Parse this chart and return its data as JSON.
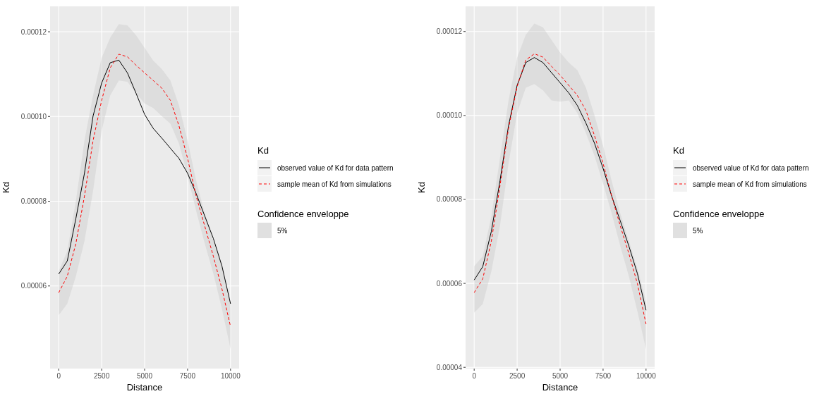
{
  "chart_data": [
    {
      "type": "line",
      "xlabel": "Distance",
      "ylabel": "Kd",
      "legend_title": "Kd",
      "legend": "right",
      "grid": true,
      "xlim": [
        -500,
        10500
      ],
      "xticks": [
        0,
        2500,
        5000,
        7500,
        10000
      ],
      "ylim": [
        4.05e-05,
        0.000126
      ],
      "yticks": [
        {
          "value": 6e-05,
          "label": "0.00006"
        },
        {
          "value": 8e-05,
          "label": "0.00008"
        },
        {
          "value": 0.0001,
          "label": "0.00010"
        },
        {
          "value": 0.00012,
          "label": "0.00012"
        }
      ],
      "x": [
        0,
        500,
        1000,
        1500,
        2000,
        2500,
        3000,
        3500,
        4000,
        4500,
        5000,
        5500,
        6000,
        6500,
        7000,
        7500,
        8000,
        8500,
        9000,
        9500,
        10000
      ],
      "annotations": [
        "Confidence enveloppe",
        "5%"
      ],
      "series": [
        {
          "name": "observed value of Kd for data pattern",
          "color": "#000000",
          "line_style": "solid",
          "values": [
            6.28e-05,
            6.59e-05,
            7.59e-05,
            8.66e-05,
            0.0001001,
            0.0001079,
            0.0001127,
            0.0001133,
            0.0001103,
            0.0001055,
            0.0001005,
            9.72e-05,
            9.49e-05,
            9.25e-05,
            9.01e-05,
            8.66e-05,
            8.18e-05,
            7.65e-05,
            7.12e-05,
            6.47e-05,
            5.58e-05
          ]
        },
        {
          "name": "sample mean of Kd from simulations",
          "color": "#ff0000",
          "line_style": "dashed",
          "values": [
            5.84e-05,
            6.23e-05,
            7e-05,
            8.12e-05,
            9.43e-05,
            0.0001038,
            0.0001115,
            0.0001147,
            0.0001141,
            0.0001121,
            0.0001103,
            0.0001085,
            0.0001067,
            0.0001038,
            9.78e-05,
            9.01e-05,
            8.12e-05,
            7.41e-05,
            6.7e-05,
            5.93e-05,
            5.04e-05
          ],
          "lower": [
            5.31e-05,
            5.58e-05,
            6.23e-05,
            7.06e-05,
            8.24e-05,
            9.67e-05,
            0.000105,
            0.0001085,
            0.0001082,
            0.0001055,
            0.0001031,
            0.000102,
            0.0001001,
            9.83e-05,
            9.36e-05,
            8.6e-05,
            7.77e-05,
            7e-05,
            6.29e-05,
            5.46e-05,
            4.51e-05
          ],
          "upper": [
            6.35e-05,
            6.82e-05,
            8e-05,
            9.43e-05,
            0.000105,
            0.0001138,
            0.0001186,
            0.0001218,
            0.0001215,
            0.0001192,
            0.0001162,
            0.0001132,
            0.0001112,
            0.0001085,
            0.0001026,
            9.43e-05,
            8.48e-05,
            7.71e-05,
            7.06e-05,
            6.47e-05,
            5.58e-05
          ]
        }
      ]
    },
    {
      "type": "line",
      "xlabel": "Distance",
      "ylabel": "Kd",
      "legend_title": "Kd",
      "legend": "right",
      "grid": true,
      "xlim": [
        -500,
        10500
      ],
      "xticks": [
        0,
        2500,
        5000,
        7500,
        10000
      ],
      "ylim": [
        3.97e-05,
        0.000126
      ],
      "yticks": [
        {
          "value": 4e-05,
          "label": "0.00004"
        },
        {
          "value": 6e-05,
          "label": "0.00006"
        },
        {
          "value": 8e-05,
          "label": "0.00008"
        },
        {
          "value": 0.0001,
          "label": "0.00010"
        },
        {
          "value": 0.00012,
          "label": "0.00012"
        }
      ],
      "x": [
        0,
        500,
        1000,
        1500,
        2000,
        2500,
        3000,
        3500,
        4000,
        4500,
        5000,
        5500,
        6000,
        6500,
        7000,
        7500,
        8000,
        8500,
        9000,
        9500,
        10000
      ],
      "annotations": [
        "Confidence enveloppe",
        "5%"
      ],
      "series": [
        {
          "name": "observed value of Kd for data pattern",
          "color": "#000000",
          "line_style": "solid",
          "values": [
            6.08e-05,
            6.4e-05,
            7.24e-05,
            8.44e-05,
            9.76e-05,
            0.0001072,
            0.0001126,
            0.0001138,
            0.0001126,
            0.0001102,
            0.0001078,
            0.0001054,
            0.0001024,
            9.82e-05,
            9.34e-05,
            8.74e-05,
            8.08e-05,
            7.49e-05,
            6.89e-05,
            6.23e-05,
            5.36e-05
          ]
        },
        {
          "name": "sample mean of Kd from simulations",
          "color": "#ff0000",
          "line_style": "dashed",
          "values": [
            5.78e-05,
            6.11e-05,
            7.01e-05,
            8.32e-05,
            9.7e-05,
            0.0001069,
            0.0001132,
            0.0001147,
            0.0001139,
            0.0001117,
            0.0001096,
            0.0001072,
            0.0001048,
            0.0001012,
            9.52e-05,
            8.86e-05,
            8.08e-05,
            7.37e-05,
            6.71e-05,
            5.99e-05,
            5.03e-05
          ],
          "lower": [
            5.3e-05,
            5.51e-05,
            6.29e-05,
            7.37e-05,
            8.86e-05,
            0.0001006,
            0.0001066,
            0.0001075,
            0.000106,
            0.0001036,
            0.0001033,
            0.0001036,
            0.0001006,
            9.58e-05,
            9.04e-05,
            8.38e-05,
            7.67e-05,
            6.89e-05,
            6.17e-05,
            5.33e-05,
            4.43e-05
          ],
          "upper": [
            6.41e-05,
            6.65e-05,
            7.6e-05,
            8.98e-05,
            0.0001036,
            0.0001138,
            0.0001192,
            0.0001219,
            0.000121,
            0.000118,
            0.000115,
            0.0001126,
            0.0001108,
            0.0001066,
            0.0001,
            9.28e-05,
            8.44e-05,
            7.67e-05,
            7.01e-05,
            6.35e-05,
            5.57e-05
          ]
        }
      ]
    }
  ]
}
